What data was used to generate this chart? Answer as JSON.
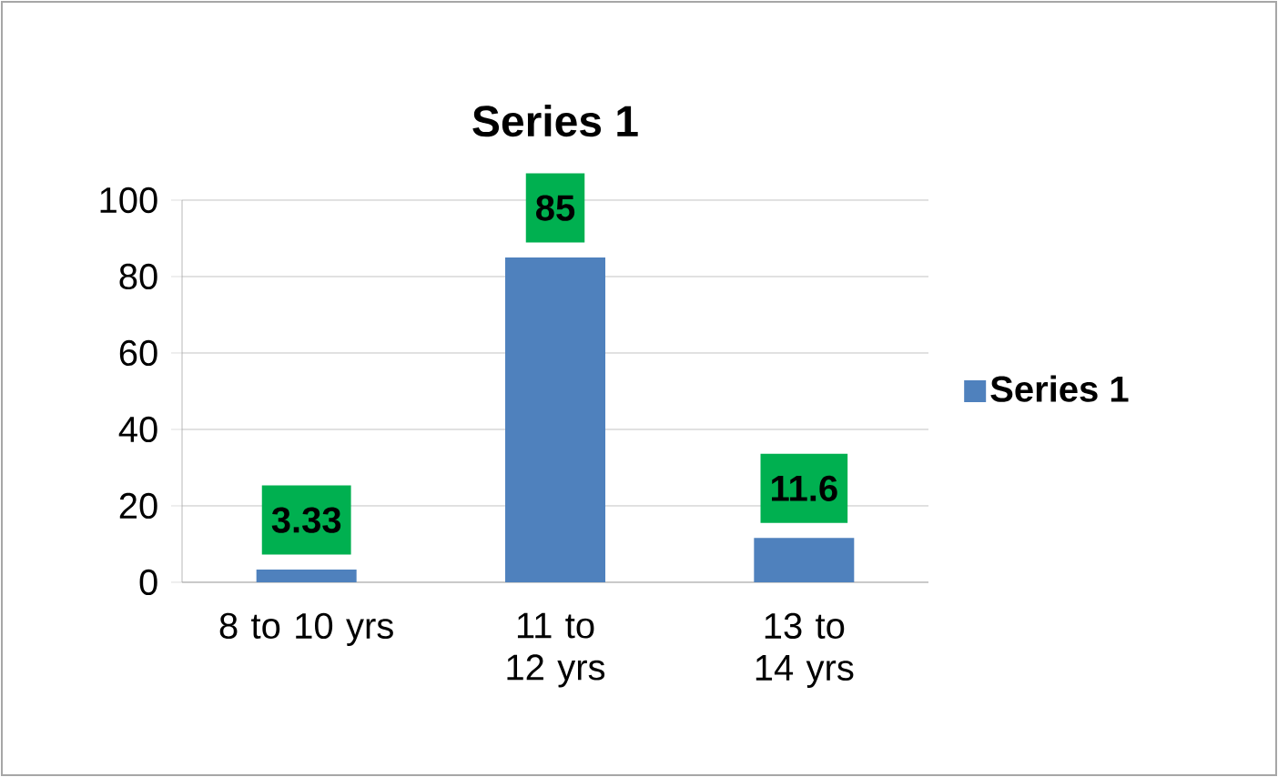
{
  "chart_data": {
    "type": "bar",
    "title": "Series 1",
    "categories": [
      "8 to 10 yrs",
      "11 to 12 yrs",
      "13 to 14 yrs"
    ],
    "series": [
      {
        "name": "Series 1",
        "color": "#4f81bd",
        "values": [
          3.33,
          85,
          11.6
        ]
      }
    ],
    "ylim": [
      0,
      100
    ],
    "yticks": [
      0,
      20,
      40,
      60,
      80,
      100
    ],
    "grid": "y",
    "legend": "right",
    "data_labels": true
  }
}
